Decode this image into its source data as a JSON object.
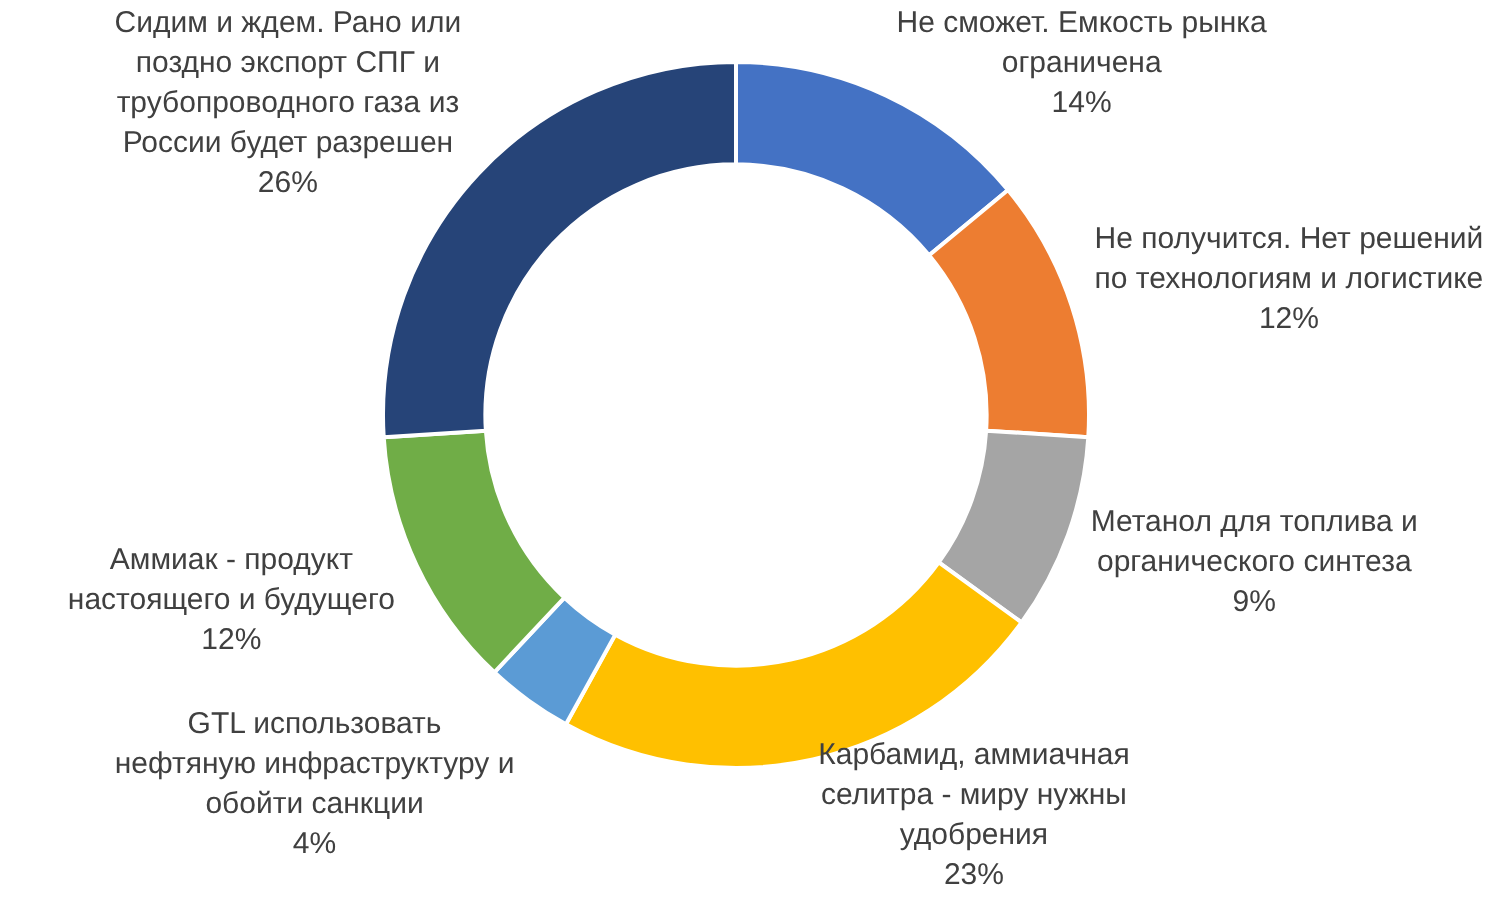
{
  "chart_data": {
    "type": "donut",
    "categories": [
      "Не сможет. Емкость рынка ограничена",
      "Не получится. Нет решений по технологиям и логистике",
      "Метанол для топлива и органического синтеза",
      "Карбамид, аммиачная селитра - миру нужны удобрения",
      "GTL использовать нефтяную инфраструктуру и обойти санкции",
      "Аммиак - продукт настоящего и будущего",
      "Сидим и ждем. Рано или поздно экспорт СПГ и трубопроводного газа из России будет разрешен"
    ],
    "values": [
      14,
      12,
      9,
      23,
      4,
      12,
      26
    ],
    "value_labels": [
      "14%",
      "12%",
      "9%",
      "23%",
      "4%",
      "12%",
      "26%"
    ],
    "colors": [
      "#4472c4",
      "#ed7d31",
      "#a5a5a5",
      "#ffc000",
      "#5b9bd5",
      "#70ad47",
      "#264478"
    ],
    "legend": false
  }
}
